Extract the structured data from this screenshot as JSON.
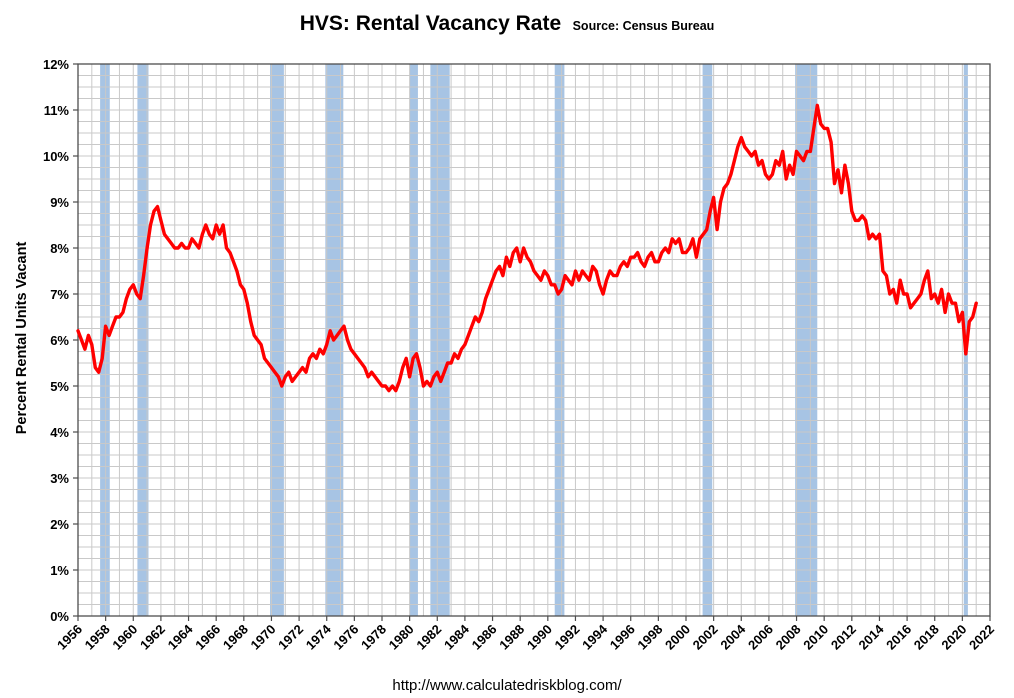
{
  "header": {
    "title": "HVS: Rental Vacancy Rate",
    "subtitle": "Source: Census Bureau"
  },
  "footer": {
    "url": "http://www.calculatedriskblog.com/"
  },
  "chart_data": {
    "type": "line",
    "title": "HVS: Rental Vacancy Rate",
    "subtitle": "Source: Census Bureau",
    "ylabel": "Percent Rental Units Vacant",
    "xlabel": "",
    "x_min": 1956,
    "x_max": 2022,
    "y_min": 0,
    "y_max": 12,
    "y_tick_step": 1,
    "y_tick_labels": [
      "0%",
      "1%",
      "2%",
      "3%",
      "4%",
      "5%",
      "6%",
      "7%",
      "8%",
      "9%",
      "10%",
      "11%",
      "12%"
    ],
    "x_tick_labels": [
      "1956",
      "1958",
      "1960",
      "1962",
      "1964",
      "1966",
      "1968",
      "1970",
      "1972",
      "1974",
      "1976",
      "1978",
      "1980",
      "1982",
      "1984",
      "1986",
      "1988",
      "1990",
      "1992",
      "1994",
      "1996",
      "1998",
      "2000",
      "2002",
      "2004",
      "2006",
      "2008",
      "2010",
      "2012",
      "2014",
      "2016",
      "2018",
      "2020",
      "2022"
    ],
    "grid": {
      "vertical_step_years": 1,
      "horizontal_step": 0.25
    },
    "series": [
      {
        "name": "Rental Vacancy Rate",
        "start_year": 1956,
        "points_per_year": 4,
        "values": [
          6.2,
          6.0,
          5.8,
          6.1,
          5.9,
          5.4,
          5.3,
          5.6,
          6.3,
          6.1,
          6.3,
          6.5,
          6.5,
          6.6,
          6.9,
          7.1,
          7.2,
          7.0,
          6.9,
          7.4,
          8.0,
          8.5,
          8.8,
          8.9,
          8.6,
          8.3,
          8.2,
          8.1,
          8.0,
          8.0,
          8.1,
          8.0,
          8.0,
          8.2,
          8.1,
          8.0,
          8.3,
          8.5,
          8.3,
          8.2,
          8.5,
          8.3,
          8.5,
          8.0,
          7.9,
          7.7,
          7.5,
          7.2,
          7.1,
          6.8,
          6.4,
          6.1,
          6.0,
          5.9,
          5.6,
          5.5,
          5.4,
          5.3,
          5.2,
          5.0,
          5.2,
          5.3,
          5.1,
          5.2,
          5.3,
          5.4,
          5.3,
          5.6,
          5.7,
          5.6,
          5.8,
          5.7,
          5.9,
          6.2,
          6.0,
          6.1,
          6.2,
          6.3,
          6.0,
          5.8,
          5.7,
          5.6,
          5.5,
          5.4,
          5.2,
          5.3,
          5.2,
          5.1,
          5.0,
          5.0,
          4.9,
          5.0,
          4.9,
          5.1,
          5.4,
          5.6,
          5.2,
          5.6,
          5.7,
          5.4,
          5.0,
          5.1,
          5.0,
          5.2,
          5.3,
          5.1,
          5.3,
          5.5,
          5.5,
          5.7,
          5.6,
          5.8,
          5.9,
          6.1,
          6.3,
          6.5,
          6.4,
          6.6,
          6.9,
          7.1,
          7.3,
          7.5,
          7.6,
          7.4,
          7.8,
          7.6,
          7.9,
          8.0,
          7.7,
          8.0,
          7.8,
          7.7,
          7.5,
          7.4,
          7.3,
          7.5,
          7.4,
          7.2,
          7.2,
          7.0,
          7.1,
          7.4,
          7.3,
          7.2,
          7.5,
          7.3,
          7.5,
          7.4,
          7.3,
          7.6,
          7.5,
          7.2,
          7.0,
          7.3,
          7.5,
          7.4,
          7.4,
          7.6,
          7.7,
          7.6,
          7.8,
          7.8,
          7.9,
          7.7,
          7.6,
          7.8,
          7.9,
          7.7,
          7.7,
          7.9,
          8.0,
          7.9,
          8.2,
          8.1,
          8.2,
          7.9,
          7.9,
          8.0,
          8.2,
          7.8,
          8.2,
          8.3,
          8.4,
          8.8,
          9.1,
          8.4,
          9.0,
          9.3,
          9.4,
          9.6,
          9.9,
          10.2,
          10.4,
          10.2,
          10.1,
          10.0,
          10.1,
          9.8,
          9.9,
          9.6,
          9.5,
          9.6,
          9.9,
          9.8,
          10.1,
          9.5,
          9.8,
          9.6,
          10.1,
          10.0,
          9.9,
          10.1,
          10.1,
          10.6,
          11.1,
          10.7,
          10.6,
          10.6,
          10.3,
          9.4,
          9.7,
          9.2,
          9.8,
          9.4,
          8.8,
          8.6,
          8.6,
          8.7,
          8.6,
          8.2,
          8.3,
          8.2,
          8.3,
          7.5,
          7.4,
          7.0,
          7.1,
          6.8,
          7.3,
          7.0,
          7.0,
          6.7,
          6.8,
          6.9,
          7.0,
          7.3,
          7.5,
          6.9,
          7.0,
          6.8,
          7.1,
          6.6,
          7.0,
          6.8,
          6.8,
          6.4,
          6.6,
          5.7,
          6.4,
          6.5,
          6.8
        ]
      }
    ],
    "recessions": [
      [
        1957.6,
        1958.3
      ],
      [
        1960.3,
        1961.1
      ],
      [
        1969.9,
        1970.9
      ],
      [
        1973.9,
        1975.2
      ],
      [
        1980.0,
        1980.6
      ],
      [
        1981.5,
        1982.9
      ],
      [
        1990.5,
        1991.2
      ],
      [
        2001.2,
        2001.9
      ],
      [
        2007.9,
        2009.5
      ],
      [
        2020.1,
        2020.4
      ]
    ],
    "colors": {
      "line": "#FF0000",
      "recession_band": "#A7C4E4",
      "grid": "#C9C9C9",
      "axis": "#4D4D4D",
      "text": "#000000"
    }
  }
}
